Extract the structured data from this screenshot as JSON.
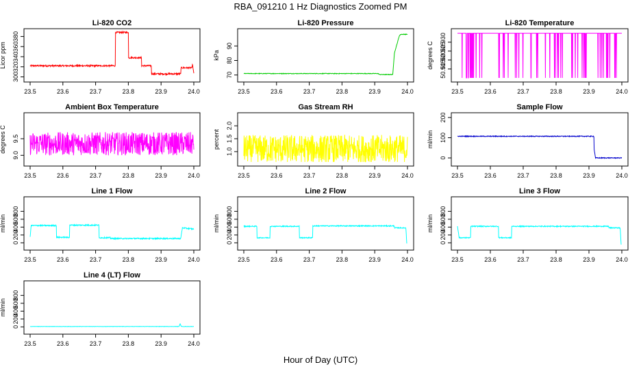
{
  "title": "RBA_091210  1 Hz Diagnostics Zoomed PM",
  "xlabel": "Hour of Day (UTC)",
  "chart_data": [
    {
      "type": "line",
      "title": "Li-820 CO2",
      "ylabel": "Licor ppm",
      "color": "#ff0000",
      "xlim": [
        23.5,
        24.0
      ],
      "xticks": [
        "23.5",
        "23.6",
        "23.7",
        "23.8",
        "23.9",
        "24.0"
      ],
      "ylim": [
        298,
        390
      ],
      "yticks": [
        "300",
        "320",
        "340",
        "360",
        "380"
      ],
      "series": [
        {
          "x": [
            23.5,
            23.76,
            23.76,
            23.8,
            23.8,
            23.84,
            23.84,
            23.87,
            23.87,
            23.96,
            23.96,
            23.995,
            23.995,
            24.0
          ],
          "values": [
            322,
            322,
            388,
            388,
            338,
            338,
            322,
            322,
            306,
            306,
            318,
            318,
            330,
            306
          ],
          "noise": 1.5
        }
      ]
    },
    {
      "type": "line",
      "title": "Li-820 Pressure",
      "ylabel": "kPa",
      "color": "#00cc00",
      "xlim": [
        23.5,
        24.0
      ],
      "xticks": [
        "23.5",
        "23.6",
        "23.7",
        "23.8",
        "23.9",
        "24.0"
      ],
      "ylim": [
        68,
        100
      ],
      "yticks": [
        "70",
        "80",
        "90"
      ],
      "series": [
        {
          "x": [
            23.5,
            23.91,
            23.915,
            23.955,
            23.96,
            23.975,
            23.98,
            24.0
          ],
          "values": [
            71,
            71,
            70.3,
            70.3,
            85,
            97,
            98,
            98
          ],
          "noise": 0.2
        }
      ]
    },
    {
      "type": "line",
      "title": "Li-820 Temperature",
      "ylabel": "degrees C",
      "color": "#ff00ff",
      "xlim": [
        23.5,
        24.0
      ],
      "xticks": [
        "23.5",
        "23.6",
        "23.7",
        "23.8",
        "23.9",
        "24.0"
      ],
      "ylim": [
        50.91,
        50.936
      ],
      "yticks": [
        "50.915",
        "50.920",
        "50.925",
        "50.930"
      ],
      "series": [
        {
          "x": [
            23.5,
            24.0
          ],
          "values": [
            50.935,
            50.935
          ],
          "spikes_to": 50.91,
          "spike_density": 0.08
        }
      ]
    },
    {
      "type": "line",
      "title": "Ambient Box Temperature",
      "ylabel": "degrees C",
      "color": "#ff00ff",
      "xlim": [
        23.5,
        24.0
      ],
      "xticks": [
        "23.5",
        "23.6",
        "23.7",
        "23.8",
        "23.9",
        "24.0"
      ],
      "ylim": [
        8.8,
        10.2
      ],
      "yticks": [
        "9.0",
        "9.5"
      ],
      "series": [
        {
          "x": [
            23.5,
            24.0
          ],
          "values": [
            9.35,
            9.35
          ],
          "noise": 0.35
        }
      ]
    },
    {
      "type": "line",
      "title": "Gas Stream RH",
      "ylabel": "percent",
      "color": "#ffff00",
      "xlim": [
        23.5,
        24.0
      ],
      "xticks": [
        "23.5",
        "23.6",
        "23.7",
        "23.8",
        "23.9",
        "24.0"
      ],
      "ylim": [
        0.6,
        2.4
      ],
      "yticks": [
        "1.0",
        "1.5",
        "2.0"
      ],
      "series": [
        {
          "x": [
            23.5,
            24.0
          ],
          "values": [
            1.1,
            1.1
          ],
          "noise": 0.55
        }
      ]
    },
    {
      "type": "line",
      "title": "Sample Flow",
      "ylabel": "ml/min",
      "color": "#0000cc",
      "xlim": [
        23.5,
        24.0
      ],
      "xticks": [
        "23.5",
        "23.6",
        "23.7",
        "23.8",
        "23.9",
        "24.0"
      ],
      "ylim": [
        -20,
        210
      ],
      "yticks": [
        "0",
        "100",
        "200"
      ],
      "series": [
        {
          "x": [
            23.5,
            23.915,
            23.915,
            23.92,
            24.0
          ],
          "values": [
            107,
            107,
            50,
            0,
            0
          ],
          "noise": 2
        }
      ]
    },
    {
      "type": "line",
      "title": "Line 1 Flow",
      "ylabel": "ml/min",
      "color": "#00ffff",
      "xlim": [
        23.5,
        24.0
      ],
      "xticks": [
        "23.5",
        "23.6",
        "23.7",
        "23.8",
        "23.9",
        "24.0"
      ],
      "ylim": [
        -80,
        1100
      ],
      "yticks": [
        "0",
        "200",
        "400",
        "600",
        "800"
      ],
      "series": [
        {
          "x": [
            23.5,
            23.503,
            23.58,
            23.58,
            23.62,
            23.62,
            23.71,
            23.71,
            23.745,
            23.745,
            23.96,
            23.965,
            24.0
          ],
          "values": [
            150,
            440,
            440,
            140,
            140,
            450,
            450,
            130,
            130,
            110,
            110,
            380,
            350
          ],
          "noise": 15
        }
      ]
    },
    {
      "type": "line",
      "title": "Line 2 Flow",
      "ylabel": "ml/min",
      "color": "#00ffff",
      "xlim": [
        23.5,
        24.0
      ],
      "xticks": [
        "23.5",
        "23.6",
        "23.7",
        "23.8",
        "23.9",
        "24.0"
      ],
      "ylim": [
        -80,
        1100
      ],
      "yticks": [
        "0",
        "200",
        "400",
        "600",
        "800"
      ],
      "series": [
        {
          "x": [
            23.5,
            23.54,
            23.54,
            23.58,
            23.58,
            23.67,
            23.67,
            23.71,
            23.71,
            23.96,
            23.96,
            23.995,
            23.998
          ],
          "values": [
            420,
            420,
            130,
            130,
            420,
            420,
            130,
            130,
            430,
            430,
            380,
            380,
            -10
          ],
          "noise": 12
        }
      ]
    },
    {
      "type": "line",
      "title": "Line 3 Flow",
      "ylabel": "ml/min",
      "color": "#00ffff",
      "xlim": [
        23.5,
        24.0
      ],
      "xticks": [
        "23.5",
        "23.6",
        "23.7",
        "23.8",
        "23.9",
        "24.0"
      ],
      "ylim": [
        -80,
        1100
      ],
      "yticks": [
        "0",
        "200",
        "400",
        "600",
        "800"
      ],
      "series": [
        {
          "x": [
            23.5,
            23.505,
            23.54,
            23.54,
            23.625,
            23.625,
            23.665,
            23.665,
            23.96,
            23.96,
            23.995,
            23.998
          ],
          "values": [
            430,
            130,
            130,
            420,
            420,
            130,
            130,
            420,
            420,
            380,
            380,
            -50
          ],
          "noise": 12
        }
      ]
    },
    {
      "type": "line",
      "title": "Line 4 (LT) Flow",
      "ylabel": "ml/min",
      "color": "#00ffff",
      "xlim": [
        23.5,
        24.0
      ],
      "xticks": [
        "23.5",
        "23.6",
        "23.7",
        "23.8",
        "23.9",
        "24.0"
      ],
      "ylim": [
        -80,
        1100
      ],
      "yticks": [
        "0",
        "200",
        "400",
        "600",
        "800"
      ],
      "series": [
        {
          "x": [
            23.5,
            23.955,
            23.958,
            23.962,
            24.0
          ],
          "values": [
            10,
            10,
            80,
            10,
            10
          ],
          "noise": 4
        }
      ]
    }
  ]
}
